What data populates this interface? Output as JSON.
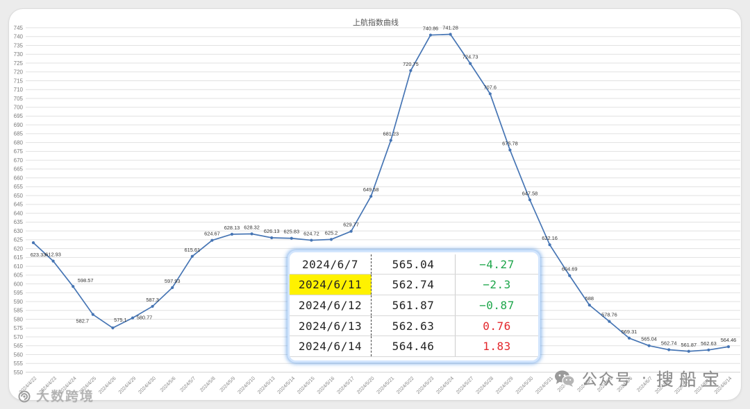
{
  "chart_data": {
    "type": "line",
    "title": "上航指数曲线",
    "x": [
      "2024/4/22",
      "2024/4/23",
      "2024/4/24",
      "2024/4/25",
      "2024/4/26",
      "2024/4/29",
      "2024/4/30",
      "2024/5/6",
      "2024/5/7",
      "2024/5/8",
      "2024/5/9",
      "2024/5/10",
      "2024/5/13",
      "2024/5/14",
      "2024/5/15",
      "2024/5/16",
      "2024/5/17",
      "2024/5/20",
      "2024/5/21",
      "2024/5/22",
      "2024/5/23",
      "2024/5/24",
      "2024/5/27",
      "2024/5/28",
      "2024/5/29",
      "2024/5/30",
      "2024/5/31",
      "2024/6/3",
      "2024/6/4",
      "2024/6/5",
      "2024/6/6",
      "2024/6/7",
      "2024/6/11",
      "2024/6/12",
      "2024/6/13",
      "2024/6/14"
    ],
    "series": [
      {
        "values": [
          623.33,
          612.93,
          598.57,
          582.7,
          575.1,
          580.77,
          587.3,
          597.93,
          615.61,
          624.67,
          628.13,
          628.32,
          626.13,
          625.83,
          624.72,
          625.2,
          629.77,
          649.58,
          681.23,
          720.75,
          740.86,
          741.28,
          724.73,
          707.6,
          675.78,
          647.58,
          622.16,
          604.69,
          588,
          578.76,
          569.31,
          565.04,
          562.74,
          561.87,
          562.63,
          564.46
        ]
      }
    ],
    "ylim": [
      550,
      745
    ],
    "ytick_step": 5,
    "grid": true,
    "legend": "none",
    "data_labels": true,
    "colors": {
      "line": "#4675b4"
    }
  },
  "table": {
    "rows": [
      {
        "date": "2024/6/7",
        "value": "565.04",
        "change": "−4.27"
      },
      {
        "date": "2024/6/11",
        "value": "562.74",
        "change": "−2.3",
        "highlighted": true
      },
      {
        "date": "2024/6/12",
        "value": "561.87",
        "change": "−0.87"
      },
      {
        "date": "2024/6/13",
        "value": "562.63",
        "change": "0.76"
      },
      {
        "date": "2024/6/14",
        "value": "564.46",
        "change": "1.83"
      }
    ],
    "colors": {
      "negative": "#1ea64b",
      "positive": "#e3262b",
      "highlight": "#fff200"
    }
  },
  "watermarks": {
    "account_prefix": "公众号",
    "separator": "·",
    "account_name": "搜船宝",
    "brand": "大数跨境"
  }
}
